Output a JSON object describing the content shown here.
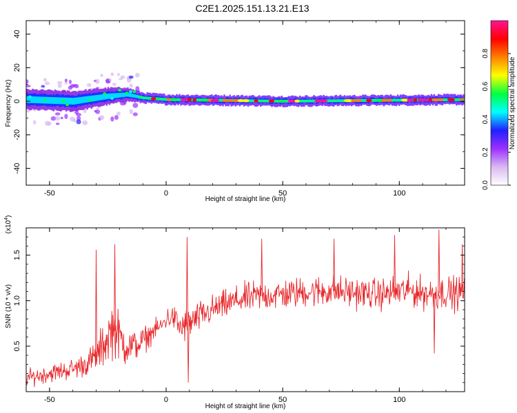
{
  "title": "C2E1.2025.151.13.21.E13",
  "chart_data": [
    {
      "type": "heatmap",
      "xlabel": "Height of straight line (km)",
      "ylabel": "Frequency (Hz)",
      "xlim": [
        -60,
        128
      ],
      "ylim": [
        -50,
        48
      ],
      "xticks": [
        -50,
        0,
        50,
        100
      ],
      "yticks": [
        -40,
        -20,
        0,
        20,
        40
      ],
      "x_tick_labels": [
        "-50",
        "0",
        "50",
        "100"
      ],
      "y_tick_labels": [
        "-40",
        "-20",
        "0",
        "20",
        "40"
      ],
      "colorbar": {
        "label": "Normalized spectral amplitude",
        "range": [
          0,
          1
        ],
        "ticks": [
          0.0,
          0.2,
          0.4,
          0.6,
          0.8
        ],
        "tick_labels": [
          "0.0",
          "0.2",
          "0.4",
          "0.6",
          "0.8"
        ],
        "colors": [
          "#ffffff",
          "#d9b8f0",
          "#9b30ff",
          "#2020ff",
          "#00ffff",
          "#00ff40",
          "#ffff00",
          "#ff8000",
          "#ff0000",
          "#ff1493"
        ]
      },
      "ridge": [
        {
          "x": -60,
          "y": 1,
          "halfwidth": 5
        },
        {
          "x": -40,
          "y": 0,
          "halfwidth": 5
        },
        {
          "x": -25,
          "y": 3,
          "halfwidth": 4
        },
        {
          "x": -17,
          "y": 4,
          "halfwidth": 3
        },
        {
          "x": -10,
          "y": 2,
          "halfwidth": 2
        },
        {
          "x": 0,
          "y": 1,
          "halfwidth": 2
        },
        {
          "x": 50,
          "y": 0,
          "halfwidth": 2
        },
        {
          "x": 128,
          "y": 1,
          "halfwidth": 2
        }
      ]
    },
    {
      "type": "line",
      "xlabel": "Height of straight line (km)",
      "ylabel": "SNR (10 * v/v)",
      "y_multiplier": "(x10",
      "y_multiplier_exp": "4",
      "y_multiplier_close": ")",
      "xlim": [
        -60,
        128
      ],
      "ylim": [
        0,
        18000
      ],
      "xticks": [
        -50,
        0,
        50,
        100
      ],
      "yticks": [
        5000,
        10000,
        15000
      ],
      "x_tick_labels": [
        "-50",
        "0",
        "50",
        "100"
      ],
      "y_tick_labels": [
        "0.5",
        "1.0",
        "1.5"
      ],
      "series": [
        {
          "color": "#e8262a",
          "x": [
            -60,
            -50,
            -40,
            -35,
            -30,
            -26,
            -23,
            -20,
            -18,
            -15,
            -12,
            -8,
            -5,
            -2,
            0,
            3,
            6,
            10,
            15,
            20,
            25,
            30,
            35,
            40,
            45,
            50,
            55,
            60,
            65,
            70,
            75,
            80,
            85,
            90,
            95,
            100,
            105,
            110,
            115,
            120,
            125,
            128
          ],
          "baseline": [
            1500,
            2000,
            2500,
            3000,
            3800,
            5500,
            7000,
            6000,
            5200,
            5000,
            5200,
            6000,
            6800,
            7200,
            8000,
            8200,
            7000,
            7500,
            8300,
            9000,
            9500,
            10000,
            10300,
            10500,
            10600,
            10700,
            10800,
            11000,
            11000,
            11100,
            11000,
            10900,
            10800,
            10700,
            10800,
            11000,
            11100,
            10800,
            10800,
            10900,
            10800,
            11000
          ],
          "amplitude": [
            1000,
            1100,
            1300,
            1500,
            2000,
            3000,
            3500,
            3000,
            2800,
            2000,
            1800,
            1500,
            1200,
            1200,
            1400,
            1500,
            2200,
            2000,
            1900,
            1800,
            1800,
            1800,
            1900,
            1900,
            1900,
            2000,
            1900,
            1900,
            2000,
            2000,
            1900,
            1900,
            1900,
            1900,
            2000,
            2100,
            2000,
            2000,
            2100,
            2000,
            2100,
            2000
          ]
        }
      ],
      "spikes": [
        {
          "x": -22,
          "y": 16200
        },
        {
          "x": -30,
          "y": 15600
        },
        {
          "x": 9,
          "y": 17000
        },
        {
          "x": 9.5,
          "y": 1000
        },
        {
          "x": 41,
          "y": 16800
        },
        {
          "x": 72,
          "y": 16800
        },
        {
          "x": 98,
          "y": 17200
        },
        {
          "x": 117,
          "y": 17800
        },
        {
          "x": 115,
          "y": 4200
        },
        {
          "x": 127,
          "y": 16200
        }
      ]
    }
  ]
}
